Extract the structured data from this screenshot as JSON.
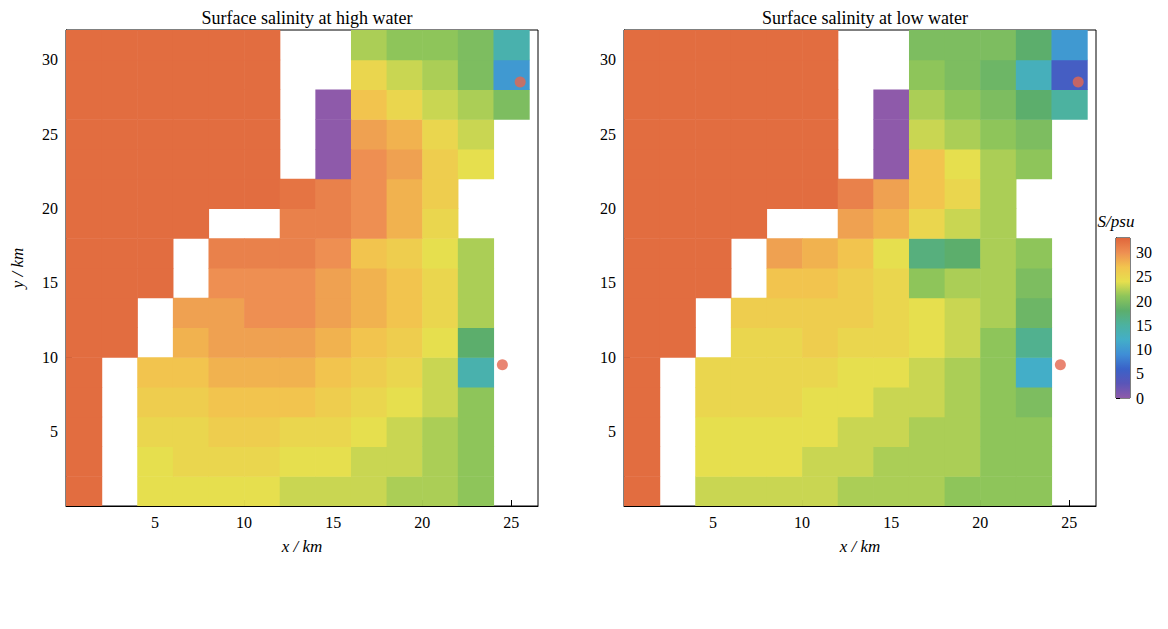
{
  "chart_data": [
    {
      "type": "heatmap",
      "title": "Surface salinity at high water",
      "xlabel": "x / km",
      "ylabel": "y / km",
      "xlim": [
        0,
        26.5
      ],
      "ylim": [
        0,
        32
      ],
      "xticks": [
        5,
        10,
        15,
        20,
        25
      ],
      "yticks": [
        5,
        10,
        15,
        20,
        25,
        30
      ],
      "x": [
        1,
        3,
        5,
        7,
        9,
        11,
        13,
        15,
        17,
        19,
        21,
        23,
        25
      ],
      "y": [
        1,
        3,
        5,
        7,
        9,
        11,
        13,
        15,
        17,
        19,
        21,
        23,
        25,
        27,
        29,
        31
      ],
      "salinity": [
        [
          32.5,
          null,
          24,
          24,
          24,
          24,
          23,
          23,
          23,
          22,
          22,
          21,
          null
        ],
        [
          32.5,
          null,
          24,
          25,
          25,
          25,
          24,
          24,
          23,
          23,
          22,
          21,
          null
        ],
        [
          32.5,
          null,
          25,
          25,
          26,
          26,
          25,
          25,
          24,
          23,
          22,
          21,
          null
        ],
        [
          32.5,
          null,
          26,
          26,
          27,
          27,
          27,
          26,
          25,
          24,
          23,
          21,
          null
        ],
        [
          32.5,
          null,
          27,
          27,
          28,
          28,
          28,
          27,
          26,
          25,
          23,
          14,
          null
        ],
        [
          32.5,
          32.5,
          null,
          28,
          29,
          29,
          29,
          28,
          27,
          26,
          24,
          18,
          null
        ],
        [
          32.5,
          32.5,
          null,
          29,
          29,
          30,
          30,
          29,
          28,
          27,
          25,
          22,
          null
        ],
        [
          32.5,
          32.5,
          32.5,
          null,
          30,
          30,
          30,
          29,
          28,
          27,
          25,
          22,
          null
        ],
        [
          32.5,
          32.5,
          32.5,
          null,
          31,
          31,
          31,
          30,
          27,
          26,
          24,
          22,
          null
        ],
        [
          32.5,
          32.5,
          32.5,
          32.5,
          null,
          null,
          31,
          31,
          30,
          28,
          25,
          null,
          null
        ],
        [
          32.5,
          32.5,
          32.5,
          32.5,
          32.5,
          32.5,
          32,
          31,
          30,
          28,
          26,
          null,
          null
        ],
        [
          32.5,
          32.5,
          32.5,
          32.5,
          32.5,
          32.5,
          null,
          0,
          30,
          29,
          26,
          24,
          null
        ],
        [
          32.5,
          32.5,
          32.5,
          32.5,
          32.5,
          32.5,
          null,
          0,
          29,
          28,
          25,
          23,
          null
        ],
        [
          32.5,
          32.5,
          32.5,
          32.5,
          32.5,
          32.5,
          null,
          0,
          27,
          25,
          23,
          22,
          20
        ],
        [
          32.5,
          32.5,
          32.5,
          32.5,
          32.5,
          32.5,
          null,
          null,
          25,
          23,
          22,
          20,
          10
        ],
        [
          32.5,
          32.5,
          32.5,
          32.5,
          32.5,
          32.5,
          null,
          null,
          22,
          21,
          21,
          20,
          14
        ]
      ],
      "markers": {
        "x": [
          25.5,
          24.5
        ],
        "y": [
          28.5,
          9.5
        ],
        "color": "#e4664f",
        "marker": "circle"
      }
    },
    {
      "type": "heatmap",
      "title": "Surface salinity at low water",
      "xlabel": "x / km",
      "xlim": [
        0,
        26.5
      ],
      "ylim": [
        0,
        32
      ],
      "xticks": [
        5,
        10,
        15,
        20,
        25
      ],
      "yticks": [
        5,
        10,
        15,
        20,
        25,
        30
      ],
      "x": [
        1,
        3,
        5,
        7,
        9,
        11,
        13,
        15,
        17,
        19,
        21,
        23,
        25
      ],
      "y": [
        1,
        3,
        5,
        7,
        9,
        11,
        13,
        15,
        17,
        19,
        21,
        23,
        25,
        27,
        29,
        31
      ],
      "salinity": [
        [
          32.5,
          null,
          23,
          23,
          23,
          23,
          22,
          22,
          22,
          21,
          21,
          21,
          null
        ],
        [
          32.5,
          null,
          24,
          24,
          24,
          23,
          23,
          22,
          22,
          22,
          21,
          21,
          null
        ],
        [
          32.5,
          null,
          24,
          24,
          24,
          24,
          23,
          23,
          22,
          22,
          21,
          21,
          null
        ],
        [
          32.5,
          null,
          25,
          25,
          25,
          24,
          24,
          23,
          23,
          22,
          21,
          20,
          null
        ],
        [
          32.5,
          null,
          25,
          25,
          25,
          25,
          24,
          24,
          23,
          22,
          21,
          12,
          null
        ],
        [
          32.5,
          32.5,
          null,
          25,
          25,
          26,
          25,
          25,
          24,
          23,
          21,
          16,
          null
        ],
        [
          32.5,
          32.5,
          null,
          26,
          26,
          26,
          26,
          25,
          24,
          23,
          22,
          19,
          null
        ],
        [
          32.5,
          32.5,
          32.5,
          null,
          27,
          27,
          26,
          25,
          21,
          22,
          22,
          20,
          null
        ],
        [
          32.5,
          32.5,
          32.5,
          null,
          29,
          28,
          27,
          24,
          17,
          18,
          22,
          21,
          null
        ],
        [
          32.5,
          32.5,
          32.5,
          32.5,
          null,
          null,
          29,
          28,
          25,
          23,
          22,
          null,
          null
        ],
        [
          32.5,
          32.5,
          32.5,
          32.5,
          32.5,
          32.5,
          31,
          29,
          27,
          25,
          22,
          null,
          null
        ],
        [
          32.5,
          32.5,
          32.5,
          32.5,
          32.5,
          32.5,
          null,
          0,
          27,
          24,
          22,
          21,
          null
        ],
        [
          32.5,
          32.5,
          32.5,
          32.5,
          32.5,
          32.5,
          null,
          0,
          23,
          22,
          21,
          20,
          null
        ],
        [
          32.5,
          32.5,
          32.5,
          32.5,
          32.5,
          32.5,
          null,
          0,
          22,
          21,
          20,
          18,
          15
        ],
        [
          32.5,
          32.5,
          32.5,
          32.5,
          32.5,
          32.5,
          null,
          null,
          21,
          20,
          19,
          13,
          5
        ],
        [
          32.5,
          32.5,
          32.5,
          32.5,
          32.5,
          32.5,
          null,
          null,
          20,
          20,
          20,
          18,
          10
        ]
      ],
      "markers": {
        "x": [
          25.5,
          24.5
        ],
        "y": [
          28.5,
          9.5
        ],
        "color": "#e4664f",
        "marker": "circle"
      }
    }
  ],
  "colorbar": {
    "label": "S/psu",
    "range": [
      0,
      33
    ],
    "ticks": [
      0,
      5,
      10,
      15,
      20,
      25,
      30
    ],
    "colors": [
      "#8e5aaa",
      "#5a55b8",
      "#3a62c8",
      "#3f8ed6",
      "#43aec8",
      "#4cb2a0",
      "#5cae6c",
      "#8ec55a",
      "#e6df4e",
      "#f2c44e",
      "#ee8f52",
      "#e0663c"
    ]
  }
}
